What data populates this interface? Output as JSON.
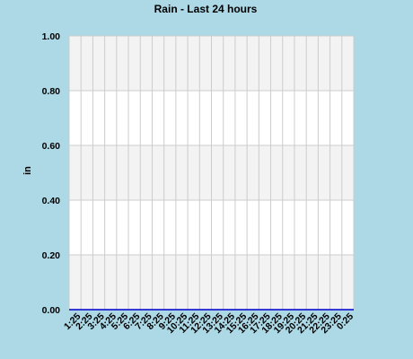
{
  "chart_data": {
    "type": "bar",
    "title": "Rain - Last 24 hours",
    "xlabel": "",
    "ylabel": "in",
    "ylim": [
      0,
      1
    ],
    "yticks": [
      "0.00",
      "0.20",
      "0.40",
      "0.60",
      "0.80",
      "1.00"
    ],
    "categories": [
      "1:25",
      "2:25",
      "3:25",
      "4:25",
      "5:25",
      "6:25",
      "7:25",
      "8:25",
      "9:25",
      "10:25",
      "11:25",
      "12:25",
      "13:25",
      "14:25",
      "15:25",
      "16:25",
      "17:25",
      "18:25",
      "19:25",
      "20:25",
      "21:25",
      "22:25",
      "23:25",
      "0:25"
    ],
    "values": [
      0,
      0,
      0,
      0,
      0,
      0,
      0,
      0,
      0,
      0,
      0,
      0,
      0,
      0,
      0,
      0,
      0,
      0,
      0,
      0,
      0,
      0,
      0,
      0
    ],
    "grid": true,
    "colors": {
      "background": "#ADD8E6",
      "plot_background": "#FFFFFF",
      "band": "#F3F3F3",
      "grid": "#CCCCCC",
      "series": "#0000CC"
    }
  }
}
